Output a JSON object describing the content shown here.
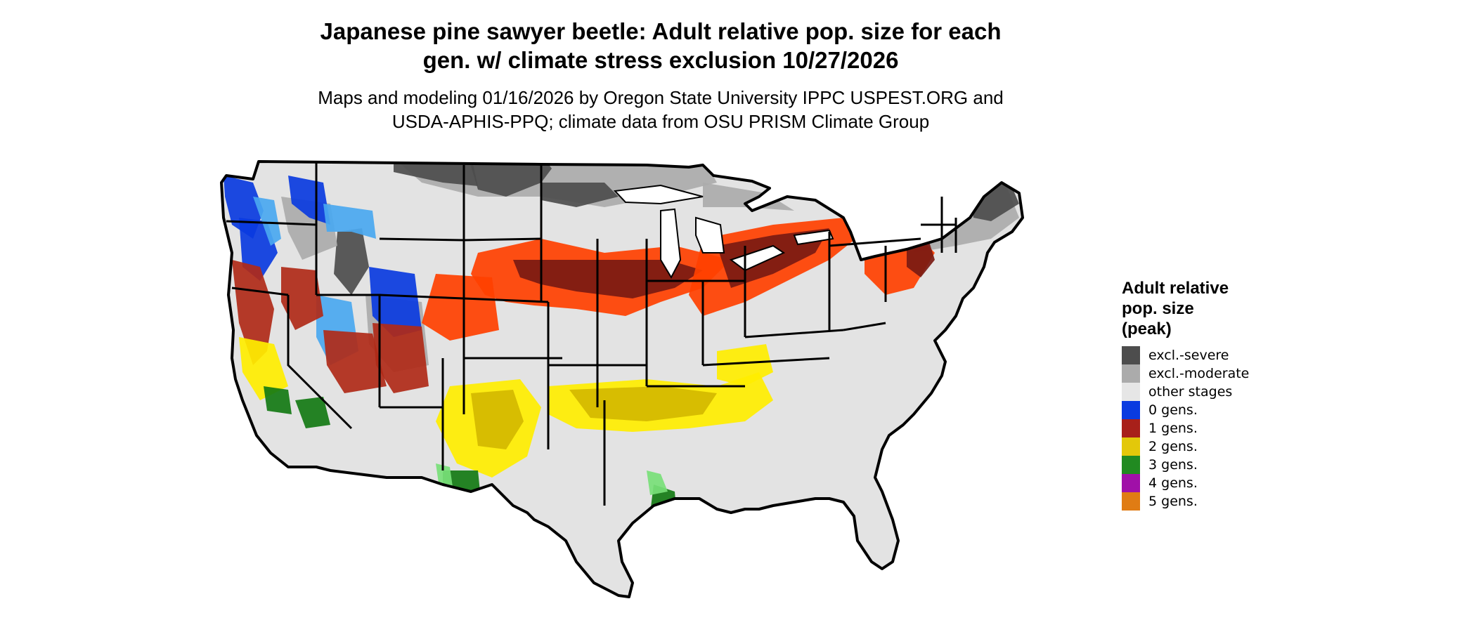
{
  "title_line1": "Japanese pine sawyer beetle: Adult relative pop. size for each",
  "title_line2": "gen. w/ climate stress exclusion 10/27/2026",
  "subtitle_line1": "Maps and modeling 01/16/2026 by Oregon State University IPPC USPEST.ORG and",
  "subtitle_line2": "USDA-APHIS-PPQ; climate data from OSU PRISM Climate Group",
  "legend": {
    "title_line1": "Adult relative",
    "title_line2": "pop. size",
    "title_line3": "(peak)",
    "items": [
      {
        "label": "excl.-severe",
        "color": "#4d4d4d"
      },
      {
        "label": "excl.-moderate",
        "color": "#ababab"
      },
      {
        "label": "other stages",
        "color": "#e6e6e6"
      },
      {
        "label": "0 gens.",
        "color": "#0a3be0"
      },
      {
        "label": "1 gens.",
        "color": "#a8201a"
      },
      {
        "label": "2 gens.",
        "color": "#e3c80a"
      },
      {
        "label": "3 gens.",
        "color": "#218a21"
      },
      {
        "label": "4 gens.",
        "color": "#a010a8"
      },
      {
        "label": "5 gens.",
        "color": "#e07c14"
      }
    ]
  },
  "map_colors": {
    "land": "#e3e3e3",
    "severe": "#4d4d4d",
    "moderate": "#ababab",
    "zero_gens": "#0a3be0",
    "zero_gens_light": "#4aa8f0",
    "one_gens_dark": "#7a1a12",
    "one_gens": "#ff4000",
    "one_gens_red": "#b02a18",
    "two_gens": "#ffee00",
    "two_gens_dark": "#d4b800",
    "three_gens": "#137a13",
    "three_gens_light": "#78e078",
    "water": "#ffffff",
    "border": "#000000"
  }
}
